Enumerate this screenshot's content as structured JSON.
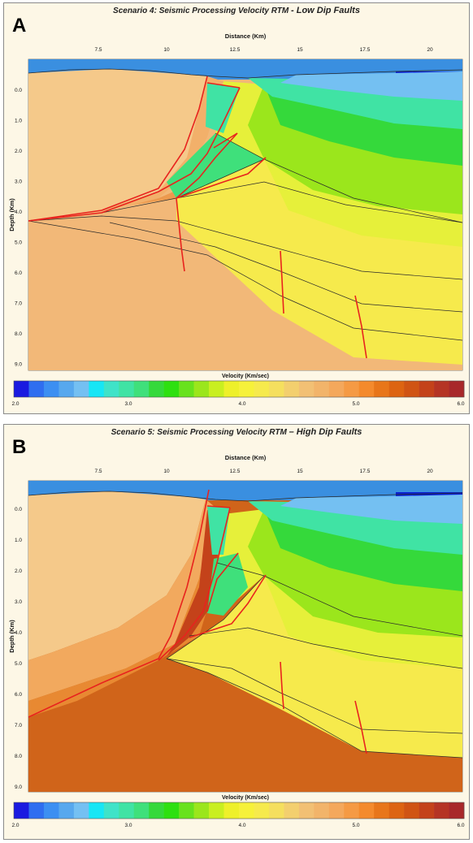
{
  "panels": [
    {
      "letter": "A",
      "title_prefix": "Scenario 4: Seismic Processing Velocity RTM ",
      "title_emph": " - Low Dip Faults",
      "chart_data": {
        "type": "heatmap",
        "title": "Scenario 4: Seismic Processing Velocity RTM - Low Dip Faults",
        "xlabel": "Distance (Km)",
        "ylabel": "Depth (Km)",
        "x_ticks": [
          "7.5",
          "10",
          "12.5",
          "15",
          "17.5",
          "20"
        ],
        "y_ticks": [
          "0.0",
          "1.0",
          "2.0",
          "3.0",
          "4.0",
          "5.0",
          "6.0",
          "7.0",
          "8.0",
          "9.0"
        ],
        "colorbar": {
          "label": "Velocity (Km/sec)",
          "ticks": [
            "2.0",
            "3.0",
            "4.0",
            "5.0",
            "6.0"
          ],
          "range": [
            2.0,
            6.0
          ]
        },
        "fault_dip": "low"
      }
    },
    {
      "letter": "B",
      "title_prefix": "Scenario 5: Seismic Processing Velocity RTM ",
      "title_emph": "– High Dip Faults",
      "chart_data": {
        "type": "heatmap",
        "title": "Scenario 5: Seismic Processing Velocity RTM – High Dip Faults",
        "xlabel": "Distance (Km)",
        "ylabel": "Depth (Km)",
        "x_ticks": [
          "7.5",
          "10",
          "12.5",
          "15",
          "17.5",
          "20"
        ],
        "y_ticks": [
          "0.0",
          "1.0",
          "2.0",
          "3.0",
          "4.0",
          "5.0",
          "6.0",
          "7.0",
          "8.0",
          "9.0"
        ],
        "colorbar": {
          "label": "Velocity (Km/sec)",
          "ticks": [
            "2.0",
            "3.0",
            "4.0",
            "5.0",
            "6.0"
          ],
          "range": [
            2.0,
            6.0
          ]
        },
        "fault_dip": "high"
      }
    }
  ],
  "colors": {
    "water": "#3a8fe0",
    "deep_water": "#0a1fd0",
    "fault": "#e8231e",
    "horizon": "#2a2a2a"
  },
  "palette": [
    "#1a1ae0",
    "#2f6ef0",
    "#3c8ff2",
    "#57a8ee",
    "#74c0f2",
    "#17e6f5",
    "#3fe3c8",
    "#40e3a4",
    "#3fe07b",
    "#35d93b",
    "#2ee010",
    "#68e21d",
    "#9be61c",
    "#c9ef20",
    "#eef02a",
    "#f6f13a",
    "#f6ea4c",
    "#f5df5e",
    "#f3cf6e",
    "#f2c074",
    "#f2b46a",
    "#f4a85c",
    "#f59a44",
    "#f48a2c",
    "#e8761a",
    "#dd6412",
    "#d05414",
    "#c4421a",
    "#b53424",
    "#a8282a"
  ]
}
